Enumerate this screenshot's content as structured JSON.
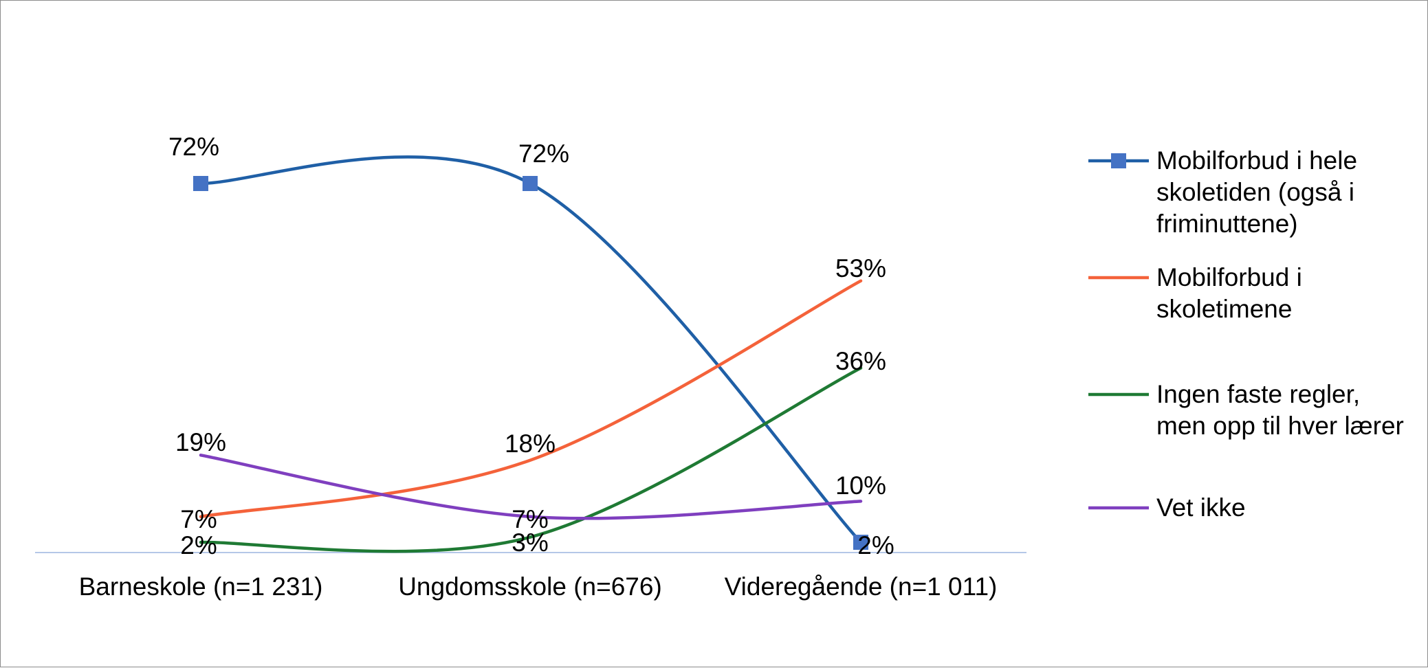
{
  "chart_data": {
    "type": "line",
    "categories": [
      "Barneskole (n=1 231)",
      "Ungdomsskole (n=676)",
      "Videregående (n=1 011)"
    ],
    "ylim": [
      0,
      100
    ],
    "grid": false,
    "legend_position": "right",
    "series": [
      {
        "name": "Mobilforbud i hele skoletiden (også i friminuttene)",
        "values": [
          72,
          72,
          2
        ],
        "labels": [
          "72%",
          "72%",
          "2%"
        ],
        "color": "#1f5fa6",
        "marker": "square",
        "marker_color": "#4472c4"
      },
      {
        "name": "Mobilforbud i skoletimene",
        "values": [
          7,
          18,
          53
        ],
        "labels": [
          "7%",
          "18%",
          "53%"
        ],
        "color": "#f4623a",
        "marker": "none"
      },
      {
        "name": "Ingen faste regler, men opp til hver lærer",
        "values": [
          2,
          3,
          36
        ],
        "labels": [
          "2%",
          "3%",
          "36%"
        ],
        "color": "#1f7a34",
        "marker": "none"
      },
      {
        "name": "Vet ikke",
        "values": [
          19,
          7,
          10
        ],
        "labels": [
          "19%",
          "7%",
          "10%"
        ],
        "color": "#7f3fbf",
        "marker": "none"
      }
    ]
  }
}
